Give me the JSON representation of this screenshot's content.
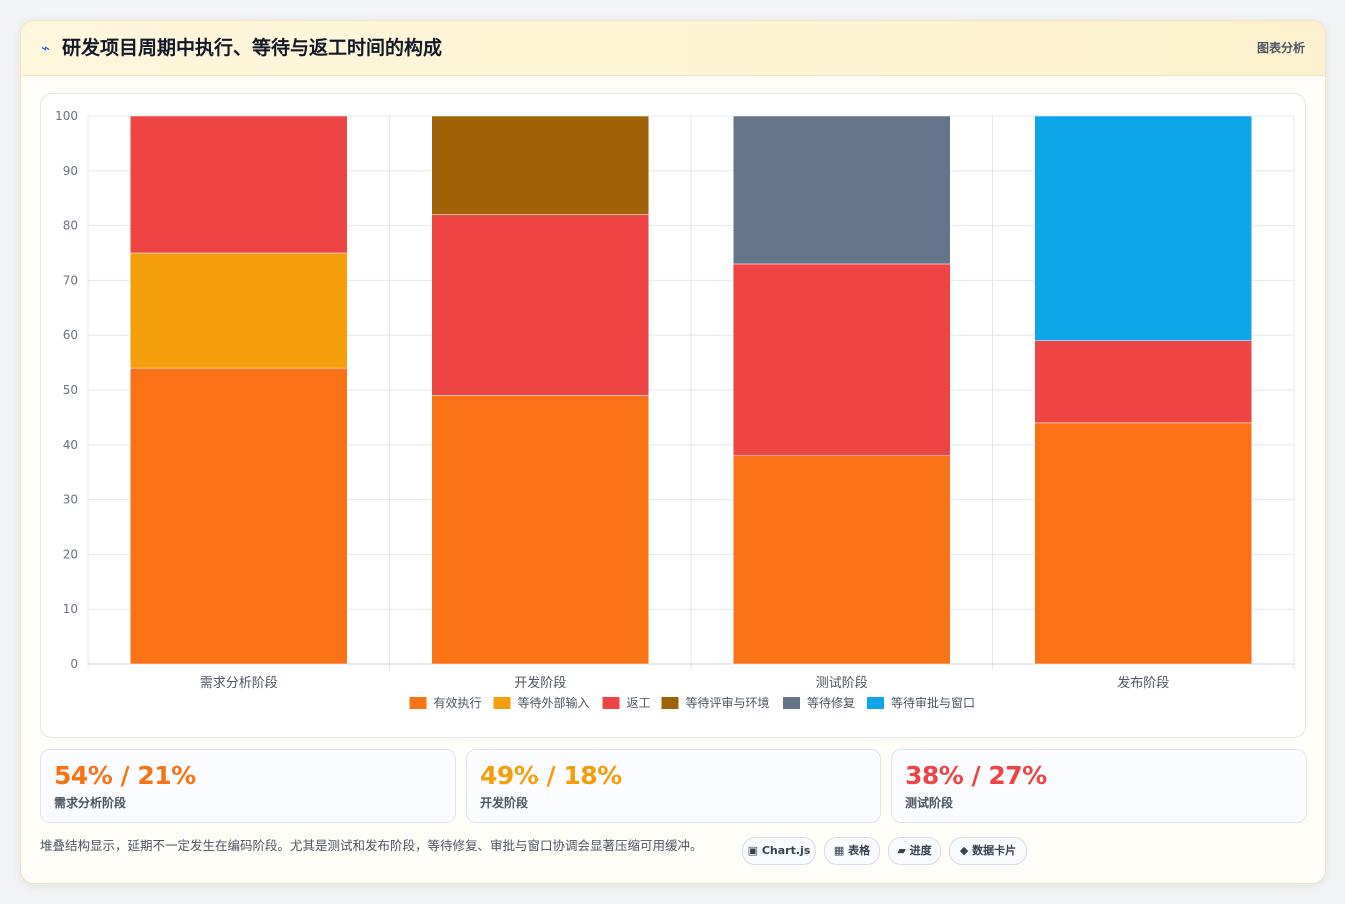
{
  "header": {
    "icon": "lightning-icon",
    "title": "研发项目周期中执行、等待与返工时间的构成",
    "tag": "图表分析"
  },
  "chart_data": {
    "type": "bar",
    "stacked": true,
    "categories": [
      "需求分析阶段",
      "开发阶段",
      "测试阶段",
      "发布阶段"
    ],
    "ylim": [
      0,
      100
    ],
    "yticks": [
      0,
      10,
      20,
      30,
      40,
      50,
      60,
      70,
      80,
      90,
      100
    ],
    "grid": true,
    "legend_position": "bottom",
    "series": [
      {
        "name": "有效执行",
        "color": "#f97316",
        "values": [
          54,
          49,
          38,
          44
        ]
      },
      {
        "name": "等待外部输入",
        "color": "#f59e0b",
        "values": [
          21,
          0,
          0,
          0
        ]
      },
      {
        "name": "返工",
        "color": "#ef4444",
        "values": [
          25,
          33,
          35,
          15
        ]
      },
      {
        "name": "等待评审与环境",
        "color": "#a16207",
        "values": [
          0,
          18,
          0,
          0
        ]
      },
      {
        "name": "等待修复",
        "color": "#64748b",
        "values": [
          0,
          0,
          27,
          0
        ]
      },
      {
        "name": "等待审批与窗口",
        "color": "#0ea5e9",
        "values": [
          0,
          0,
          0,
          41
        ]
      }
    ]
  },
  "stats": [
    {
      "value": "54% / 21%",
      "label": "需求分析阶段",
      "color": "#f97316"
    },
    {
      "value": "49% / 18%",
      "label": "开发阶段",
      "color": "#f59e0b"
    },
    {
      "value": "38% / 27%",
      "label": "测试阶段",
      "color": "#ef4444"
    }
  ],
  "note": "堆叠结构显示，延期不一定发生在编码阶段。尤其是测试和发布阶段，等待修复、审批与窗口协调会显著压缩可用缓冲。",
  "chips": [
    {
      "icon": "chart-icon",
      "glyph": "▣",
      "label": "Chart.js"
    },
    {
      "icon": "table-icon",
      "glyph": "▦",
      "label": "表格"
    },
    {
      "icon": "progress-icon",
      "glyph": "▰",
      "label": "进度"
    },
    {
      "icon": "diamond-icon",
      "glyph": "◆",
      "label": "数据卡片"
    }
  ]
}
